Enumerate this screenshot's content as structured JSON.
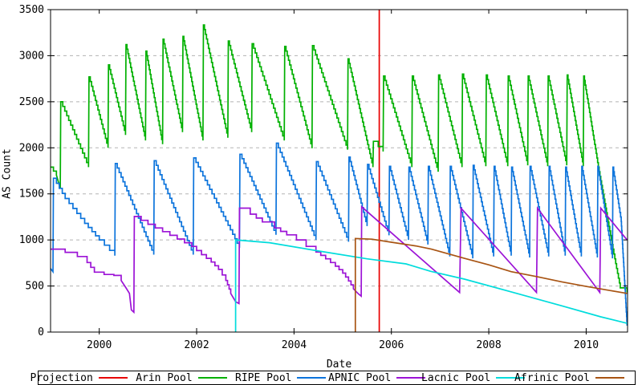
{
  "chart_data": {
    "type": "line",
    "title": "",
    "xlabel": "Date",
    "ylabel": "AS Count",
    "xlim": [
      1999.0,
      2010.85
    ],
    "ylim": [
      0,
      3500
    ],
    "xticks": [
      2000,
      2002,
      2004,
      2006,
      2008,
      2010
    ],
    "yticks": [
      0,
      500,
      1000,
      1500,
      2000,
      2500,
      3000,
      3500
    ],
    "grid": {
      "horizontal": true,
      "vertical": false,
      "style": "dashed",
      "color": "#b3b3b3"
    },
    "background": "#ffffff",
    "border_color": "#000000",
    "legend_position": "bottom",
    "series": [
      {
        "name": "Projection",
        "color": "#e80000",
        "stepped_until": 0,
        "points": [
          [
            2005.75,
            0
          ],
          [
            2005.75,
            3500
          ]
        ]
      },
      {
        "name": "Arin Pool",
        "color": "#00b000",
        "stepped_until": 9999,
        "points": [
          [
            1999.0,
            1790
          ],
          [
            1999.12,
            1705
          ],
          [
            1999.2,
            1560
          ],
          [
            1999.21,
            2500
          ],
          [
            1999.78,
            1790
          ],
          [
            1999.79,
            2770
          ],
          [
            2000.18,
            2000
          ],
          [
            2000.19,
            2900
          ],
          [
            2000.54,
            2140
          ],
          [
            2000.55,
            3120
          ],
          [
            2000.95,
            2080
          ],
          [
            2000.96,
            3050
          ],
          [
            2001.3,
            2040
          ],
          [
            2001.31,
            3180
          ],
          [
            2001.71,
            2170
          ],
          [
            2001.72,
            3210
          ],
          [
            2002.13,
            2080
          ],
          [
            2002.14,
            3334
          ],
          [
            2002.64,
            2110
          ],
          [
            2002.65,
            3160
          ],
          [
            2003.13,
            2170
          ],
          [
            2003.14,
            3130
          ],
          [
            2003.8,
            2080
          ],
          [
            2003.81,
            3100
          ],
          [
            2004.37,
            1995
          ],
          [
            2004.38,
            3110
          ],
          [
            2005.1,
            1980
          ],
          [
            2005.11,
            2965
          ],
          [
            2005.62,
            1790
          ],
          [
            2005.63,
            2070
          ],
          [
            2005.83,
            1960
          ],
          [
            2005.84,
            2780
          ],
          [
            2006.42,
            1790
          ],
          [
            2006.43,
            2780
          ],
          [
            2006.96,
            1740
          ],
          [
            2006.97,
            2790
          ],
          [
            2007.45,
            1790
          ],
          [
            2007.46,
            2800
          ],
          [
            2007.94,
            1800
          ],
          [
            2007.95,
            2790
          ],
          [
            2008.39,
            1800
          ],
          [
            2008.4,
            2780
          ],
          [
            2008.8,
            1810
          ],
          [
            2008.81,
            2780
          ],
          [
            2009.21,
            1800
          ],
          [
            2009.22,
            2780
          ],
          [
            2009.6,
            1810
          ],
          [
            2009.61,
            2790
          ],
          [
            2009.94,
            1800
          ],
          [
            2009.95,
            2780
          ],
          [
            2010.25,
            1790
          ],
          [
            2010.55,
            900
          ],
          [
            2010.7,
            480
          ],
          [
            2010.84,
            430
          ]
        ]
      },
      {
        "name": "RIPE Pool",
        "color": "#0c74dc",
        "stepped_until": 9999,
        "points": [
          [
            1999.0,
            690
          ],
          [
            1999.05,
            655
          ],
          [
            1999.06,
            1670
          ],
          [
            1999.3,
            1450
          ],
          [
            1999.7,
            1180
          ],
          [
            2000.0,
            1000
          ],
          [
            2000.32,
            830
          ],
          [
            2000.33,
            1830
          ],
          [
            2001.12,
            840
          ],
          [
            2001.13,
            1860
          ],
          [
            2001.93,
            840
          ],
          [
            2001.94,
            1890
          ],
          [
            2002.88,
            915
          ],
          [
            2002.89,
            1930
          ],
          [
            2003.63,
            1055
          ],
          [
            2003.64,
            2050
          ],
          [
            2004.45,
            1000
          ],
          [
            2004.46,
            1850
          ],
          [
            2005.12,
            980
          ],
          [
            2005.13,
            1900
          ],
          [
            2005.5,
            1150
          ],
          [
            2005.51,
            1820
          ],
          [
            2005.95,
            1050
          ],
          [
            2005.96,
            1800
          ],
          [
            2006.35,
            1000
          ],
          [
            2006.36,
            1790
          ],
          [
            2006.75,
            950
          ],
          [
            2006.76,
            1800
          ],
          [
            2007.2,
            820
          ],
          [
            2007.21,
            1800
          ],
          [
            2007.67,
            800
          ],
          [
            2007.68,
            1810
          ],
          [
            2008.1,
            820
          ],
          [
            2008.11,
            1800
          ],
          [
            2008.46,
            830
          ],
          [
            2008.47,
            1790
          ],
          [
            2008.84,
            810
          ],
          [
            2008.85,
            1800
          ],
          [
            2009.23,
            820
          ],
          [
            2009.24,
            1800
          ],
          [
            2009.57,
            830
          ],
          [
            2009.58,
            1790
          ],
          [
            2009.9,
            820
          ],
          [
            2009.91,
            1800
          ],
          [
            2010.23,
            810
          ],
          [
            2010.24,
            1800
          ],
          [
            2010.54,
            800
          ],
          [
            2010.55,
            1790
          ],
          [
            2010.72,
            1200
          ],
          [
            2010.84,
            70
          ]
        ]
      },
      {
        "name": "APNIC Pool",
        "color": "#9c13d6",
        "stepped_until": 2005.38,
        "points": [
          [
            1999.0,
            900
          ],
          [
            1999.3,
            865
          ],
          [
            1999.55,
            820
          ],
          [
            1999.75,
            755
          ],
          [
            1999.9,
            650
          ],
          [
            2000.1,
            625
          ],
          [
            2000.3,
            615
          ],
          [
            2000.45,
            560
          ],
          [
            2000.55,
            480
          ],
          [
            2000.62,
            420
          ],
          [
            2000.66,
            240
          ],
          [
            2000.71,
            215
          ],
          [
            2000.72,
            1255
          ],
          [
            2001.0,
            1170
          ],
          [
            2001.3,
            1090
          ],
          [
            2001.6,
            1010
          ],
          [
            2001.9,
            930
          ],
          [
            2002.1,
            840
          ],
          [
            2002.3,
            760
          ],
          [
            2002.45,
            680
          ],
          [
            2002.6,
            560
          ],
          [
            2002.7,
            420
          ],
          [
            2002.8,
            330
          ],
          [
            2002.87,
            310
          ],
          [
            2002.88,
            1345
          ],
          [
            2003.1,
            1280
          ],
          [
            2003.35,
            1195
          ],
          [
            2003.6,
            1130
          ],
          [
            2003.85,
            1055
          ],
          [
            2004.05,
            1000
          ],
          [
            2004.25,
            930
          ],
          [
            2004.45,
            870
          ],
          [
            2004.65,
            795
          ],
          [
            2004.85,
            715
          ],
          [
            2005.0,
            640
          ],
          [
            2005.12,
            555
          ],
          [
            2005.22,
            470
          ],
          [
            2005.32,
            415
          ],
          [
            2005.38,
            390
          ],
          [
            2005.39,
            1360
          ],
          [
            2007.4,
            430
          ],
          [
            2007.43,
            1345
          ],
          [
            2008.98,
            430
          ],
          [
            2009.0,
            1345
          ],
          [
            2010.28,
            430
          ],
          [
            2010.3,
            1345
          ],
          [
            2010.84,
            1000
          ]
        ]
      },
      {
        "name": "Lacnic Pool",
        "color": "#00dcdc",
        "stepped_until": 0,
        "points": [
          [
            2002.8,
            0
          ],
          [
            2002.8,
            1000
          ],
          [
            2003.5,
            970
          ],
          [
            2004.5,
            880
          ],
          [
            2005.5,
            795
          ],
          [
            2006.3,
            740
          ],
          [
            2006.8,
            660
          ],
          [
            2007.5,
            575
          ],
          [
            2008.5,
            430
          ],
          [
            2009.5,
            285
          ],
          [
            2010.3,
            165
          ],
          [
            2010.84,
            95
          ]
        ]
      },
      {
        "name": "Afrinic Pool",
        "color": "#a85413",
        "stepped_until": 0,
        "points": [
          [
            2005.26,
            0
          ],
          [
            2005.26,
            1015
          ],
          [
            2005.6,
            1008
          ],
          [
            2006.0,
            975
          ],
          [
            2006.5,
            935
          ],
          [
            2006.82,
            900
          ],
          [
            2007.5,
            800
          ],
          [
            2008.0,
            730
          ],
          [
            2008.46,
            656
          ],
          [
            2009.0,
            600
          ],
          [
            2009.5,
            545
          ],
          [
            2010.0,
            495
          ],
          [
            2010.5,
            450
          ],
          [
            2010.84,
            420
          ]
        ]
      }
    ]
  }
}
